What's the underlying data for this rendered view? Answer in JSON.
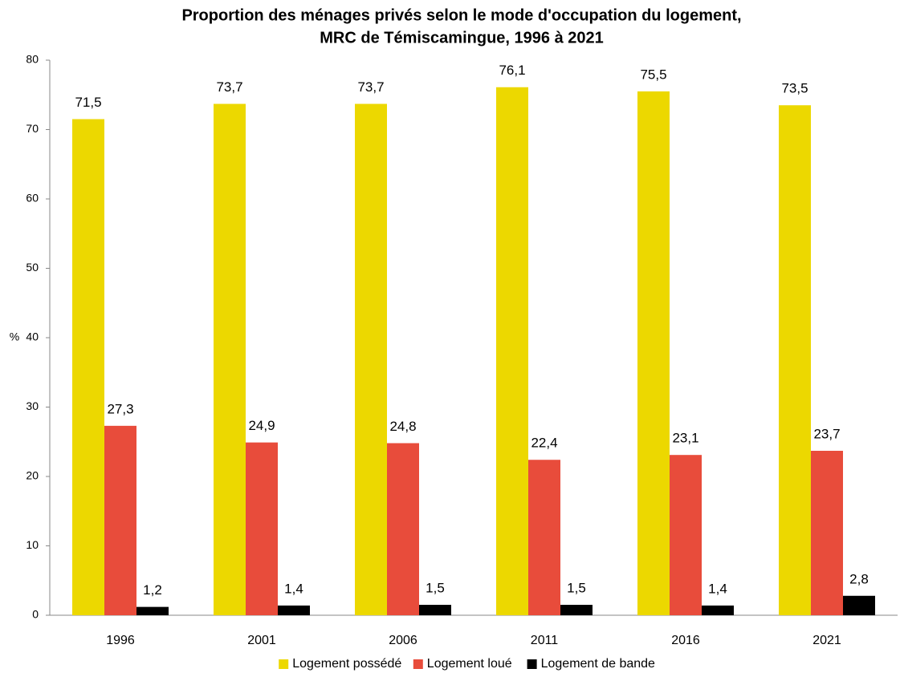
{
  "chart_data": {
    "type": "bar",
    "title": [
      "Proportion des ménages privés selon le mode d'occupation du logement,",
      "MRC de Témiscamingue, 1996 à 2021"
    ],
    "y_label": "%",
    "categories": [
      "1996",
      "2001",
      "2006",
      "2011",
      "2016",
      "2021"
    ],
    "series": [
      {
        "name": "Logement possédé",
        "color": "#ecd800",
        "values": [
          71.5,
          73.7,
          73.7,
          76.1,
          75.5,
          73.5
        ],
        "value_labels": [
          "71,5",
          "73,7",
          "73,7",
          "76,1",
          "75,5",
          "73,5"
        ]
      },
      {
        "name": "Logement loué",
        "color": "#e84c3b",
        "values": [
          27.3,
          24.9,
          24.8,
          22.4,
          23.1,
          23.7
        ],
        "value_labels": [
          "27,3",
          "24,9",
          "24,8",
          "22,4",
          "23,1",
          "23,7"
        ]
      },
      {
        "name": "Logement de bande",
        "color": "#000000",
        "values": [
          1.2,
          1.4,
          1.5,
          1.5,
          1.4,
          2.8
        ],
        "value_labels": [
          "1,2",
          "1,4",
          "1,5",
          "1,5",
          "1,4",
          "2,8"
        ]
      }
    ],
    "ylim": [
      0,
      80
    ],
    "yticks": [
      0,
      10,
      20,
      30,
      40,
      50,
      60,
      70,
      80
    ],
    "grid": false,
    "legend": "bottom"
  }
}
